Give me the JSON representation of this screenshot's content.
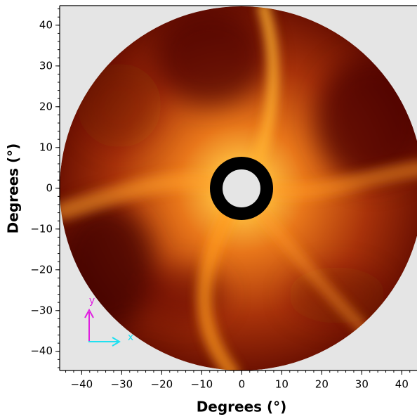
{
  "chart_data": {
    "type": "image",
    "xlabel": "Degrees (°)",
    "ylabel": "Degrees (°)",
    "xlim": [
      -45.5,
      43.8
    ],
    "ylim": [
      -44.7,
      44.8
    ],
    "xticks": [
      {
        "value": -40,
        "label": "−40"
      },
      {
        "value": -30,
        "label": "−30"
      },
      {
        "value": -20,
        "label": "−20"
      },
      {
        "value": -10,
        "label": "−10"
      },
      0,
      10,
      20,
      30,
      40
    ],
    "yticks": [
      {
        "value": -40,
        "label": "−40"
      },
      {
        "value": -30,
        "label": "−30"
      },
      {
        "value": -20,
        "label": "−20"
      },
      {
        "value": -10,
        "label": "−10"
      },
      0,
      10,
      20,
      30,
      40
    ],
    "annotations": [
      "y",
      "x"
    ]
  }
}
